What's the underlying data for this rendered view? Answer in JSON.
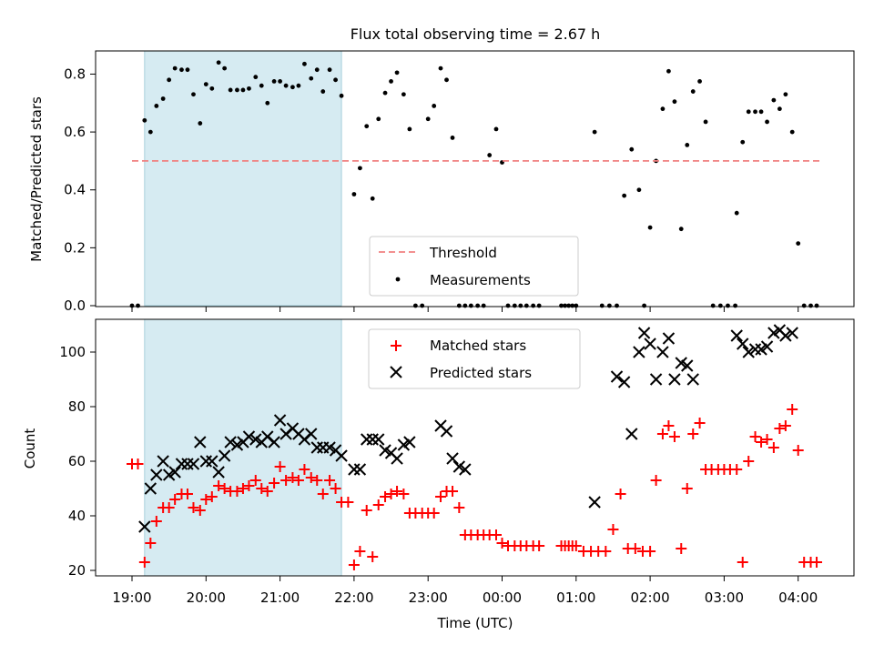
{
  "chart_data": {
    "type": "scatter",
    "title": "Flux total observing time = 2.67 h",
    "xlabel": "Time (UTC)",
    "x_tick_labels": [
      "19:00",
      "20:00",
      "21:00",
      "22:00",
      "23:00",
      "00:00",
      "01:00",
      "02:00",
      "03:00",
      "04:00"
    ],
    "x_unit": "hours since 19:00 UTC",
    "highlight_band": [
      0.17,
      2.83
    ],
    "colors": {
      "threshold": "#f08080",
      "measurement": "#000000",
      "matched": "#ff0000",
      "predicted": "#000000",
      "band": "#add8e6"
    },
    "top": {
      "ylabel": "Matched/Predicted stars",
      "ylim": [
        0,
        0.88
      ],
      "y_ticks": [
        "0.0",
        "0.2",
        "0.4",
        "0.6",
        "0.8"
      ],
      "threshold": 0.5,
      "threshold_x": [
        0.0,
        9.3
      ],
      "legend": {
        "threshold": "Threshold",
        "measurements": "Measurements",
        "placement": "lower-center"
      },
      "measurements": {
        "x": [
          0.0,
          0.08,
          0.17,
          0.25,
          0.33,
          0.42,
          0.5,
          0.58,
          0.67,
          0.75,
          0.83,
          0.92,
          1.0,
          1.08,
          1.17,
          1.25,
          1.33,
          1.42,
          1.5,
          1.58,
          1.67,
          1.75,
          1.83,
          1.92,
          2.0,
          2.08,
          2.17,
          2.25,
          2.33,
          2.42,
          2.5,
          2.58,
          2.67,
          2.75,
          2.83,
          3.0,
          3.08,
          3.17,
          3.25,
          3.33,
          3.42,
          3.5,
          3.58,
          3.67,
          3.75,
          3.83,
          3.92,
          4.0,
          4.08,
          4.17,
          4.25,
          4.33,
          4.42,
          4.5,
          4.58,
          4.67,
          4.75,
          4.83,
          4.92,
          5.0,
          5.08,
          5.17,
          5.25,
          5.33,
          5.42,
          5.5,
          5.8,
          5.85,
          5.9,
          5.95,
          6.0,
          6.25,
          6.35,
          6.45,
          6.55,
          6.65,
          6.75,
          6.85,
          6.92,
          7.0,
          7.08,
          7.17,
          7.25,
          7.33,
          7.42,
          7.5,
          7.58,
          7.67,
          7.75,
          7.85,
          7.95,
          8.05,
          8.15,
          8.17,
          8.25,
          8.33,
          8.42,
          8.5,
          8.58,
          8.67,
          8.75,
          8.83,
          8.92,
          9.0,
          9.08,
          9.17,
          9.25
        ],
        "y": [
          0,
          0,
          0.64,
          0.6,
          0.69,
          0.715,
          0.78,
          0.82,
          0.815,
          0.815,
          0.73,
          0.63,
          0.765,
          0.75,
          0.84,
          0.82,
          0.745,
          0.745,
          0.745,
          0.75,
          0.79,
          0.76,
          0.7,
          0.775,
          0.775,
          0.76,
          0.755,
          0.76,
          0.835,
          0.785,
          0.815,
          0.74,
          0.815,
          0.78,
          0.725,
          0.385,
          0.475,
          0.62,
          0.37,
          0.645,
          0.735,
          0.775,
          0.805,
          0.73,
          0.61,
          0,
          0,
          0.645,
          0.69,
          0.82,
          0.78,
          0.58,
          0,
          0,
          0,
          0,
          0,
          0.52,
          0.61,
          0.495,
          0,
          0,
          0,
          0,
          0,
          0,
          0,
          0,
          0,
          0,
          0,
          0.6,
          0,
          0,
          0,
          0.38,
          0.54,
          0.4,
          0,
          0.27,
          0.5,
          0.68,
          0.81,
          0.705,
          0.265,
          0.555,
          0.74,
          0.775,
          0.635,
          0,
          0,
          0,
          0,
          0.32,
          0.565,
          0.67,
          0.67,
          0.67,
          0.635,
          0.71,
          0.68,
          0.73,
          0.6,
          0.215,
          0,
          0,
          0
        ]
      }
    },
    "bottom": {
      "ylabel": "Count",
      "ylim": [
        18,
        112
      ],
      "y_ticks": [
        "20",
        "40",
        "60",
        "80",
        "100"
      ],
      "legend": {
        "matched": "Matched stars",
        "predicted": "Predicted stars",
        "placement": "upper-center"
      },
      "matched": {
        "x": [
          0.0,
          0.08,
          0.17,
          0.25,
          0.33,
          0.42,
          0.5,
          0.58,
          0.67,
          0.75,
          0.83,
          0.92,
          1.0,
          1.08,
          1.17,
          1.25,
          1.33,
          1.42,
          1.5,
          1.58,
          1.67,
          1.75,
          1.83,
          1.92,
          2.0,
          2.08,
          2.17,
          2.25,
          2.33,
          2.42,
          2.5,
          2.58,
          2.67,
          2.75,
          2.83,
          2.92,
          3.0,
          3.08,
          3.17,
          3.25,
          3.33,
          3.42,
          3.5,
          3.58,
          3.67,
          3.75,
          3.83,
          3.92,
          4.0,
          4.08,
          4.17,
          4.25,
          4.33,
          4.42,
          4.5,
          4.58,
          4.67,
          4.75,
          4.83,
          4.92,
          5.0,
          5.08,
          5.17,
          5.25,
          5.33,
          5.42,
          5.5,
          5.8,
          5.85,
          5.9,
          5.95,
          6.0,
          6.1,
          6.2,
          6.3,
          6.4,
          6.5,
          6.6,
          6.7,
          6.8,
          6.9,
          7.0,
          7.08,
          7.17,
          7.25,
          7.33,
          7.42,
          7.5,
          7.58,
          7.67,
          7.75,
          7.83,
          7.92,
          8.0,
          8.08,
          8.17,
          8.25,
          8.33,
          8.42,
          8.5,
          8.58,
          8.67,
          8.75,
          8.83,
          8.92,
          9.0,
          9.08,
          9.17,
          9.25
        ],
        "y": [
          59,
          59,
          23,
          30,
          38,
          43,
          43,
          46,
          48,
          48,
          43,
          42,
          46,
          47,
          51,
          50,
          49,
          49,
          50,
          51,
          53,
          50,
          49,
          52,
          58,
          53,
          54,
          53,
          57,
          54,
          53,
          48,
          53,
          50,
          45,
          45,
          22,
          27,
          42,
          25,
          44,
          47,
          48,
          49,
          48,
          41,
          41,
          41,
          41,
          41,
          47,
          49,
          49,
          43,
          33,
          33,
          33,
          33,
          33,
          33,
          30,
          29,
          29,
          29,
          29,
          29,
          29,
          29,
          29,
          29,
          29,
          29,
          27,
          27,
          27,
          27,
          35,
          48,
          28,
          28,
          27,
          27,
          53,
          70,
          73,
          69,
          28,
          50,
          70,
          74,
          57,
          57,
          57,
          57,
          57,
          57,
          23,
          60,
          69,
          67,
          68,
          65,
          72,
          73,
          79,
          64,
          23,
          23,
          23
        ]
      },
      "predicted": {
        "x": [
          0.17,
          0.25,
          0.33,
          0.42,
          0.5,
          0.58,
          0.67,
          0.75,
          0.83,
          0.92,
          1.0,
          1.08,
          1.17,
          1.25,
          1.33,
          1.42,
          1.5,
          1.58,
          1.67,
          1.75,
          1.83,
          1.92,
          2.0,
          2.08,
          2.17,
          2.25,
          2.33,
          2.42,
          2.5,
          2.58,
          2.67,
          2.75,
          2.83,
          3.0,
          3.08,
          3.17,
          3.25,
          3.33,
          3.42,
          3.5,
          3.58,
          3.67,
          3.75,
          3.83,
          4.17,
          4.25,
          4.33,
          4.42,
          4.5,
          4.58,
          6.25,
          6.55,
          6.65,
          6.75,
          6.85,
          6.92,
          7.0,
          7.08,
          7.17,
          7.25,
          7.33,
          7.42,
          7.5,
          7.58,
          7.67,
          7.75,
          8.17,
          8.25,
          8.33,
          8.42,
          8.5,
          8.58,
          8.67,
          8.75,
          8.83,
          8.92,
          9.0
        ],
        "y": [
          36,
          50,
          55,
          60,
          55,
          56,
          59,
          59,
          59,
          67,
          60,
          60,
          56,
          62,
          67,
          66,
          67,
          69,
          68,
          67,
          69,
          67,
          75,
          70,
          72,
          70,
          68,
          70,
          65,
          65,
          65,
          64,
          62,
          57,
          57,
          68,
          68,
          68,
          64,
          63,
          61,
          66,
          67,
          null,
          73,
          71,
          61,
          58,
          57,
          null,
          45,
          91,
          89,
          70,
          100,
          107,
          103,
          90,
          100,
          105,
          90,
          96,
          95,
          90,
          null,
          null,
          106,
          103,
          100,
          101,
          101,
          102,
          107,
          108,
          106,
          107,
          null
        ],
        "y_more": []
      }
    }
  }
}
